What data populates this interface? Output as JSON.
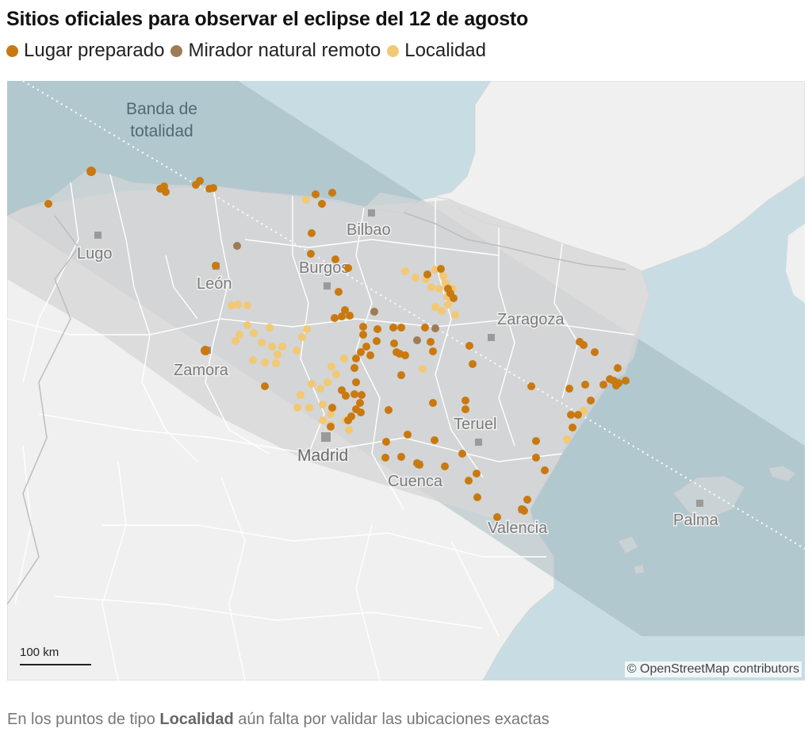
{
  "title": "Sitios oficiales para observar el eclipse del 12 de agosto",
  "legend": [
    {
      "label": "Lugar preparado",
      "color": "#c9790f"
    },
    {
      "label": "Mirador natural remoto",
      "color": "#9e7a55"
    },
    {
      "label": "Localidad",
      "color": "#f2c872"
    }
  ],
  "map": {
    "band_label_line1": "Banda de",
    "band_label_line2": "totalidad",
    "cities": [
      "Bilbao",
      "Lugo",
      "Burgos",
      "León",
      "Zaragoza",
      "Zamora",
      "Teruel",
      "Madrid",
      "Cuenca",
      "Valencia",
      "Palma"
    ],
    "scale_label": "100 km",
    "attribution": "© OpenStreetMap contributors",
    "colors": {
      "sea": "#c7dde3",
      "land": "#f0f0f0",
      "band": "#dcdcdc",
      "band_sea": "#a9c3cb",
      "borders": "#ffffff"
    }
  },
  "note": {
    "prefix": "En los puntos de tipo ",
    "bold": "Localidad",
    "suffix": " aún falta por validar las ubicaciones exactas"
  }
}
